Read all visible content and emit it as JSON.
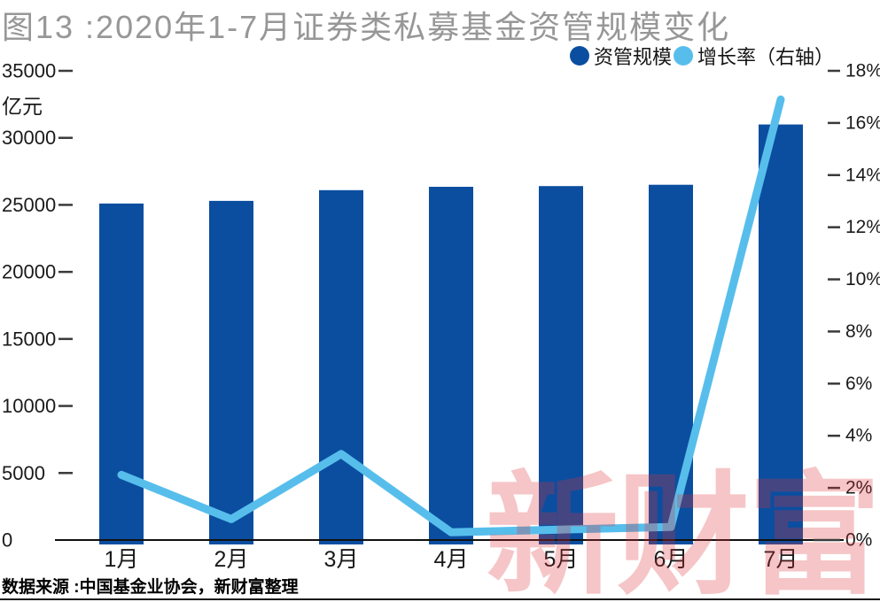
{
  "title": "图13 :2020年1-7月证券类私募基金资管规模变化",
  "legend": {
    "items": [
      {
        "label": "资管规模",
        "color": "#0B4EA0"
      },
      {
        "label": "增长率（右轴）",
        "color": "#57BEEC"
      }
    ]
  },
  "source": "数据来源 :中国基金业协会，新财富整理",
  "watermark": {
    "text": "新财富",
    "color": "rgba(224,45,55,0.28)"
  },
  "colors": {
    "bar": "#0B4EA0",
    "line": "#57BEEC",
    "axis": "#111111",
    "tick": "#3a3a3a",
    "title_gray": "#979797"
  },
  "chart_data": {
    "type": "bar+line",
    "title": "图13 :2020年1-7月证券类私募基金资管规模变化",
    "categories": [
      "1月",
      "2月",
      "3月",
      "4月",
      "5月",
      "6月",
      "7月"
    ],
    "series": [
      {
        "name": "资管规模",
        "type": "bar",
        "axis": "left",
        "unit": "亿元",
        "color": "#0B4EA0",
        "values": [
          25100,
          25300,
          26100,
          26350,
          26400,
          26500,
          31000
        ]
      },
      {
        "name": "增长率（右轴）",
        "type": "line",
        "axis": "right",
        "unit": "%",
        "color": "#57BEEC",
        "values": [
          2.5,
          0.8,
          3.3,
          0.3,
          0.4,
          0.5,
          16.9
        ]
      }
    ],
    "left_axis": {
      "unit_label": "亿元",
      "min": 0,
      "max": 35000,
      "step": 5000
    },
    "right_axis": {
      "min": 0,
      "max": 18,
      "step": 2,
      "suffix": "%"
    },
    "grid": false,
    "legend_position": "top-right"
  }
}
